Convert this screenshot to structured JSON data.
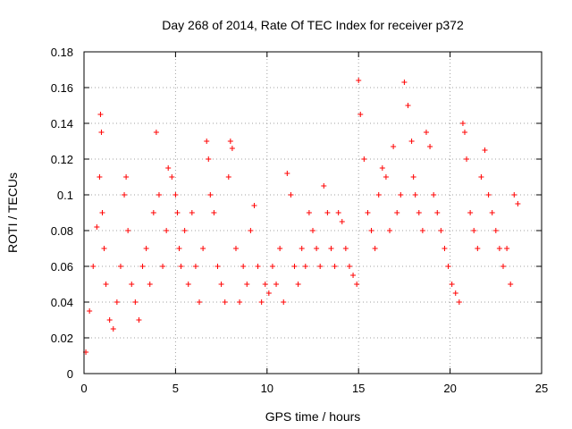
{
  "chart_data": {
    "type": "scatter",
    "title": "Day 268 of 2014, Rate Of TEC Index for receiver p372",
    "xlabel": "GPS time / hours",
    "ylabel": "ROTI / TECUs",
    "xlim": [
      0,
      25
    ],
    "ylim": [
      0,
      0.18
    ],
    "x_ticks": [
      0,
      5,
      10,
      15,
      20,
      25
    ],
    "y_ticks": [
      0,
      0.02,
      0.04,
      0.06,
      0.08,
      0.1,
      0.12,
      0.14,
      0.16,
      0.18
    ],
    "x_tick_labels": [
      "0",
      "5",
      "10",
      "15",
      "20",
      "25"
    ],
    "y_tick_labels": [
      "0",
      "0.02",
      "0.04",
      "0.06",
      "0.08",
      "0.1",
      "0.12",
      "0.14",
      "0.16",
      "0.18"
    ],
    "grid": true,
    "marker": "+",
    "color": "#ff0000",
    "series": [
      {
        "name": "ROTI",
        "x": [
          0.1,
          0.3,
          0.5,
          0.7,
          0.85,
          0.9,
          0.95,
          1.0,
          1.1,
          1.2,
          1.4,
          1.6,
          1.8,
          2.0,
          2.2,
          2.3,
          2.4,
          2.6,
          2.8,
          3.0,
          3.2,
          3.4,
          3.6,
          3.8,
          3.95,
          4.1,
          4.3,
          4.5,
          4.6,
          4.8,
          5.0,
          5.1,
          5.2,
          5.3,
          5.5,
          5.7,
          5.9,
          6.1,
          6.3,
          6.5,
          6.7,
          6.8,
          6.9,
          7.1,
          7.3,
          7.5,
          7.7,
          7.9,
          8.0,
          8.1,
          8.3,
          8.5,
          8.7,
          8.9,
          9.1,
          9.3,
          9.5,
          9.7,
          9.9,
          10.1,
          10.3,
          10.5,
          10.7,
          10.9,
          11.1,
          11.3,
          11.5,
          11.7,
          11.9,
          12.1,
          12.3,
          12.5,
          12.7,
          12.9,
          13.1,
          13.3,
          13.5,
          13.7,
          13.9,
          14.1,
          14.3,
          14.5,
          14.7,
          14.9,
          15.0,
          15.1,
          15.3,
          15.5,
          15.7,
          15.9,
          16.1,
          16.3,
          16.5,
          16.7,
          16.9,
          17.1,
          17.3,
          17.5,
          17.7,
          17.9,
          18.0,
          18.1,
          18.3,
          18.5,
          18.7,
          18.9,
          19.1,
          19.3,
          19.5,
          19.7,
          19.9,
          20.1,
          20.3,
          20.5,
          20.7,
          20.8,
          20.9,
          21.1,
          21.3,
          21.5,
          21.7,
          21.9,
          22.1,
          22.3,
          22.5,
          22.7,
          22.9,
          23.1,
          23.3,
          23.5,
          23.7
        ],
        "y": [
          0.012,
          0.035,
          0.06,
          0.082,
          0.11,
          0.145,
          0.135,
          0.09,
          0.07,
          0.05,
          0.03,
          0.025,
          0.04,
          0.06,
          0.1,
          0.11,
          0.08,
          0.05,
          0.04,
          0.03,
          0.06,
          0.07,
          0.05,
          0.09,
          0.135,
          0.1,
          0.06,
          0.08,
          0.115,
          0.11,
          0.1,
          0.09,
          0.07,
          0.06,
          0.08,
          0.05,
          0.09,
          0.06,
          0.04,
          0.07,
          0.13,
          0.12,
          0.1,
          0.09,
          0.06,
          0.05,
          0.04,
          0.11,
          0.13,
          0.126,
          0.07,
          0.04,
          0.06,
          0.05,
          0.08,
          0.094,
          0.06,
          0.04,
          0.05,
          0.045,
          0.06,
          0.05,
          0.07,
          0.04,
          0.112,
          0.1,
          0.06,
          0.05,
          0.07,
          0.06,
          0.09,
          0.08,
          0.07,
          0.06,
          0.105,
          0.09,
          0.07,
          0.06,
          0.09,
          0.085,
          0.07,
          0.06,
          0.055,
          0.05,
          0.164,
          0.145,
          0.12,
          0.09,
          0.08,
          0.07,
          0.1,
          0.115,
          0.11,
          0.08,
          0.127,
          0.09,
          0.1,
          0.163,
          0.15,
          0.13,
          0.11,
          0.1,
          0.09,
          0.08,
          0.135,
          0.127,
          0.1,
          0.09,
          0.08,
          0.07,
          0.06,
          0.05,
          0.045,
          0.04,
          0.14,
          0.135,
          0.12,
          0.09,
          0.08,
          0.07,
          0.11,
          0.125,
          0.1,
          0.09,
          0.08,
          0.07,
          0.06,
          0.07,
          0.05,
          0.1,
          0.095
        ]
      }
    ]
  }
}
